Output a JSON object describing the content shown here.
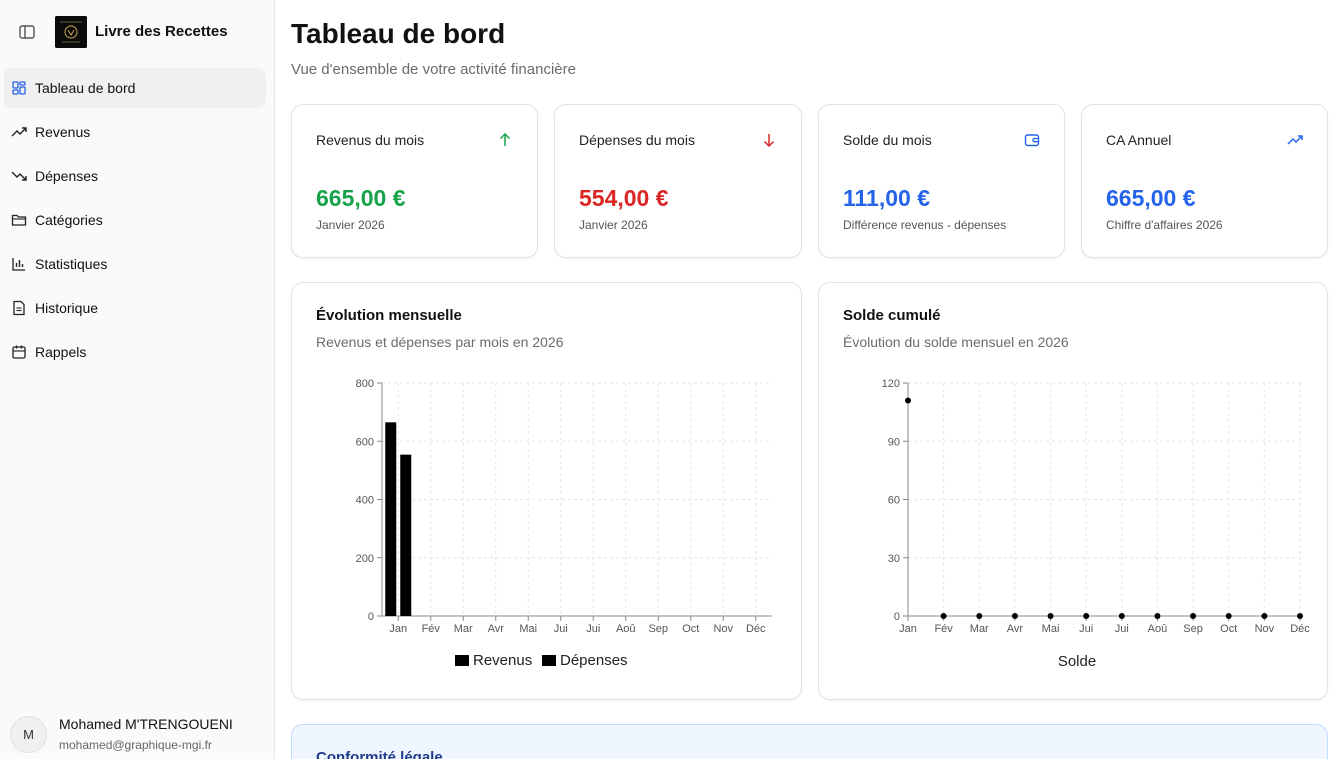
{
  "app": {
    "title": "Livre des Recettes",
    "logo_icon": "book-logo"
  },
  "nav": [
    {
      "label": "Tableau de bord",
      "icon": "dashboard-icon",
      "active": true
    },
    {
      "label": "Revenus",
      "icon": "trending-up-icon"
    },
    {
      "label": "Dépenses",
      "icon": "trending-down-icon"
    },
    {
      "label": "Catégories",
      "icon": "folder-icon"
    },
    {
      "label": "Statistiques",
      "icon": "bar-chart-icon"
    },
    {
      "label": "Historique",
      "icon": "file-text-icon"
    },
    {
      "label": "Rappels",
      "icon": "calendar-icon"
    }
  ],
  "user": {
    "avatar": "M",
    "name": "Mohamed M'TRENGOUENI",
    "email": "mohamed@graphique-mgi.fr"
  },
  "header": {
    "title": "Tableau de bord",
    "subtitle": "Vue d'ensemble de votre activité financière"
  },
  "stats": [
    {
      "title": "Revenus du mois",
      "value": "665,00 €",
      "sub": "Janvier 2026",
      "color": "#16a34a",
      "icon": "arrow-up-icon"
    },
    {
      "title": "Dépenses du mois",
      "value": "554,00 €",
      "sub": "Janvier 2026",
      "color": "#dc2626",
      "icon": "arrow-down-icon"
    },
    {
      "title": "Solde du mois",
      "value": "111,00 €",
      "sub": "Différence revenus - dépenses",
      "color": "#2563eb",
      "icon": "wallet-icon"
    },
    {
      "title": "CA Annuel",
      "value": "665,00 €",
      "sub": "Chiffre d'affaires 2026",
      "color": "#2563eb",
      "icon": "trending-up-icon"
    }
  ],
  "charts": {
    "monthly": {
      "title": "Évolution mensuelle",
      "subtitle": "Revenus et dépenses par mois en 2026"
    },
    "balance": {
      "title": "Solde cumulé",
      "subtitle": "Évolution du solde mensuel en 2026"
    }
  },
  "legal": {
    "title": "Conformité légale"
  },
  "chart_data": [
    {
      "type": "bar",
      "categories": [
        "Jan",
        "Fév",
        "Mar",
        "Avr",
        "Mai",
        "Jui",
        "Jui",
        "Aoû",
        "Sep",
        "Oct",
        "Nov",
        "Déc"
      ],
      "series": [
        {
          "name": "Revenus",
          "values": [
            665,
            0,
            0,
            0,
            0,
            0,
            0,
            0,
            0,
            0,
            0,
            0
          ]
        },
        {
          "name": "Dépenses",
          "values": [
            554,
            0,
            0,
            0,
            0,
            0,
            0,
            0,
            0,
            0,
            0,
            0
          ]
        }
      ],
      "yticks": [
        0,
        200,
        400,
        600,
        800
      ],
      "ylim": [
        0,
        800
      ],
      "grid": true,
      "legend": "bottom"
    },
    {
      "type": "line",
      "categories": [
        "Jan",
        "Fév",
        "Mar",
        "Avr",
        "Mai",
        "Jui",
        "Jui",
        "Aoû",
        "Sep",
        "Oct",
        "Nov",
        "Déc"
      ],
      "series": [
        {
          "name": "Solde",
          "values": [
            111,
            0,
            0,
            0,
            0,
            0,
            0,
            0,
            0,
            0,
            0,
            0
          ]
        }
      ],
      "yticks": [
        0,
        30,
        60,
        90,
        120
      ],
      "ylim": [
        0,
        120
      ],
      "grid": true,
      "legend": "bottom"
    }
  ]
}
